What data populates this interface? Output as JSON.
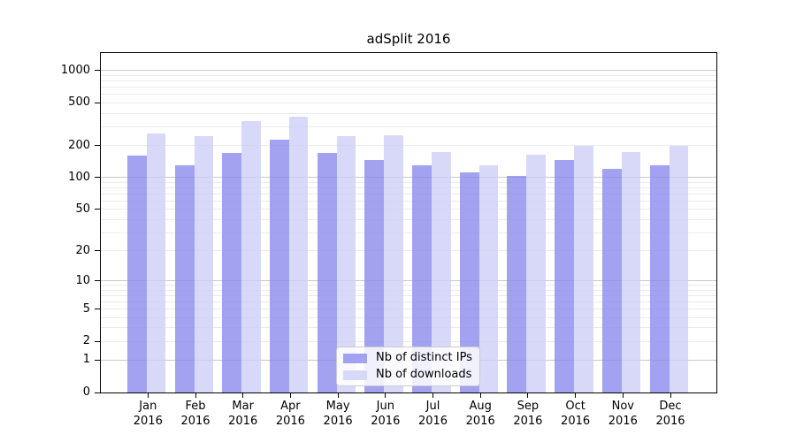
{
  "title": "adSplit 2016",
  "legend": {
    "items": [
      {
        "label": "Nb of distinct IPs",
        "color": "#a2a2f0"
      },
      {
        "label": "Nb of downloads",
        "color": "#d8d8f8"
      }
    ]
  },
  "axes": {
    "y_ticks": [
      0,
      1,
      2,
      5,
      10,
      20,
      50,
      100,
      200,
      500,
      1000
    ],
    "y_scale": "symlog",
    "x_ticks": [
      "Jan 2016",
      "Feb 2016",
      "Mar 2016",
      "Apr 2016",
      "May 2016",
      "Jun 2016",
      "Jul 2016",
      "Aug 2016",
      "Sep 2016",
      "Oct 2016",
      "Nov 2016",
      "Dec 2016"
    ]
  },
  "colors": {
    "bar_ips": "#8b8bec",
    "bar_downloads": "#cecef6",
    "legend_ips": "#a2a2f0",
    "legend_downloads": "#d8d8f8",
    "grid_major": "#c8c8c8",
    "grid_minor": "#ebebeb",
    "axis": "#000000",
    "background": "#ffffff"
  },
  "chart_data": {
    "type": "bar",
    "title": "adSplit 2016",
    "categories": [
      "Jan 2016",
      "Feb 2016",
      "Mar 2016",
      "Apr 2016",
      "May 2016",
      "Jun 2016",
      "Jul 2016",
      "Aug 2016",
      "Sep 2016",
      "Oct 2016",
      "Nov 2016",
      "Dec 2016"
    ],
    "series": [
      {
        "name": "Nb of distinct IPs",
        "values": [
          160,
          130,
          170,
          225,
          170,
          146,
          130,
          111,
          104,
          145,
          120,
          130
        ]
      },
      {
        "name": "Nb of downloads",
        "values": [
          260,
          245,
          340,
          375,
          245,
          250,
          175,
          130,
          163,
          200,
          175,
          200
        ]
      }
    ],
    "xlabel": "",
    "ylabel": "",
    "y_axis": {
      "scale": "log1p",
      "ticks": [
        0,
        1,
        2,
        5,
        10,
        20,
        50,
        100,
        200,
        500,
        1000
      ],
      "range": [
        0,
        1460
      ]
    },
    "grid": "horizontal major at powers of 10, minor at 2-9 multiples",
    "legend_position": "lower center"
  }
}
